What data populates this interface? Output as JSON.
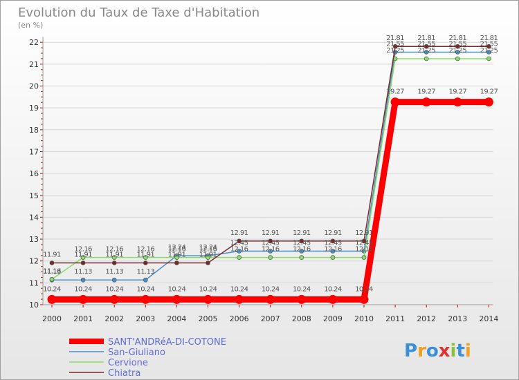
{
  "chart_data": {
    "type": "line",
    "title": "Evolution du Taux de Taxe d'Habitation",
    "subtitle": "(en %)",
    "x": [
      "2000",
      "2001",
      "2002",
      "2003",
      "2004",
      "2005",
      "2006",
      "2007",
      "2008",
      "2009",
      "2010",
      "2011",
      "2012",
      "2013",
      "2014"
    ],
    "ylim": [
      10,
      22
    ],
    "yticks": [
      10,
      11,
      12,
      13,
      14,
      15,
      16,
      17,
      18,
      19,
      20,
      21,
      22
    ],
    "series": [
      {
        "name": "SANT'ANDRéA-DI-COTONE",
        "color": "#ff0000",
        "values": [
          10.24,
          10.24,
          10.24,
          10.24,
          10.24,
          10.24,
          10.24,
          10.24,
          10.24,
          10.24,
          10.24,
          19.27,
          19.27,
          19.27,
          19.27
        ],
        "labels": [
          "10.24",
          "10.24",
          "10.24",
          "10.24",
          "10.24",
          "10.24",
          "10.24",
          "10.24",
          "10.24",
          "10.24",
          "10.24",
          "19.27",
          "19.27",
          "19.27",
          "19.27"
        ]
      },
      {
        "name": "San-Giuliano",
        "color": "#4a90c8",
        "values": [
          11.13,
          11.13,
          11.13,
          11.13,
          12.24,
          12.24,
          12.45,
          12.45,
          12.45,
          12.45,
          12.45,
          21.55,
          21.55,
          21.55,
          21.55
        ],
        "labels": [
          "11.13",
          "11.13",
          "11.13",
          "11.13",
          "12.24",
          "12.24",
          "12.45",
          "12.45",
          "12.45",
          "12.45",
          "12.45",
          "21.55",
          "21.55",
          "21.55",
          "21.55"
        ]
      },
      {
        "name": "Cervione",
        "color": "#88dd66",
        "values": [
          11.16,
          12.16,
          12.16,
          12.16,
          12.16,
          12.16,
          12.16,
          12.16,
          12.16,
          12.16,
          12.16,
          21.25,
          21.25,
          21.25,
          21.25
        ],
        "labels": [
          "11.16",
          "12.16",
          "12.16",
          "12.16",
          "12.16",
          "12.16",
          "12.16",
          "12.16",
          "12.16",
          "12.16",
          "12.16",
          "21.25",
          "21.25",
          "21.25",
          "21.25"
        ]
      },
      {
        "name": "Chiatra",
        "color": "#7a2a2a",
        "values": [
          11.91,
          11.91,
          11.91,
          11.91,
          11.91,
          11.91,
          12.91,
          12.91,
          12.91,
          12.91,
          12.91,
          21.81,
          21.81,
          21.81,
          21.81
        ],
        "labels": [
          "11.91",
          "11.91",
          "11.91",
          "11.91",
          "11.91",
          "11.91",
          "12.91",
          "12.91",
          "12.91",
          "12.91",
          "12.91",
          "21.81",
          "21.81",
          "21.81",
          "21.81"
        ]
      }
    ]
  },
  "logo": {
    "text": "Proxiti",
    "colors": [
      "#3a8fd8",
      "#f0a020",
      "#3a8fd8",
      "#e03030",
      "#88c040",
      "#3a8fd8",
      "#f0a020"
    ]
  }
}
